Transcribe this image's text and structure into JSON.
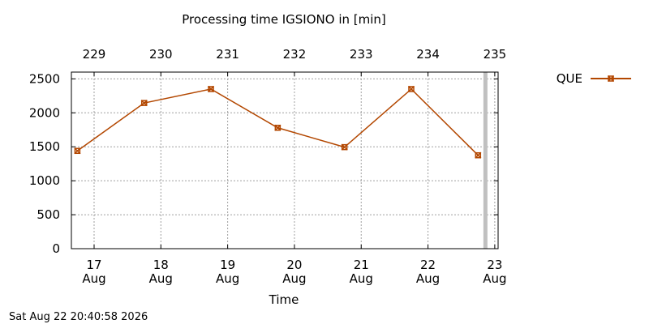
{
  "chart_data": {
    "type": "line",
    "title": "Processing time IGSIONO in [min]",
    "xlabel": "Time",
    "ylabel": "",
    "x_ticks_bottom": [
      {
        "day": "17",
        "month": "Aug"
      },
      {
        "day": "18",
        "month": "Aug"
      },
      {
        "day": "19",
        "month": "Aug"
      },
      {
        "day": "20",
        "month": "Aug"
      },
      {
        "day": "21",
        "month": "Aug"
      },
      {
        "day": "22",
        "month": "Aug"
      },
      {
        "day": "23",
        "month": "Aug"
      }
    ],
    "x_ticks_top": [
      "229",
      "230",
      "231",
      "232",
      "233",
      "234",
      "235"
    ],
    "x_range": [
      16.66,
      23.05
    ],
    "y_ticks": [
      "0",
      "500",
      "1000",
      "1500",
      "2000",
      "2500"
    ],
    "ylim": [
      0,
      2600
    ],
    "grid": true,
    "legend_position": "top-right",
    "series": [
      {
        "name": "QUE",
        "color": "#b34700",
        "marker": "x-square",
        "points": [
          {
            "x": 16.75,
            "y": 1440
          },
          {
            "x": 17.75,
            "y": 2145
          },
          {
            "x": 18.75,
            "y": 2350
          },
          {
            "x": 19.75,
            "y": 1780
          },
          {
            "x": 20.75,
            "y": 1495
          },
          {
            "x": 21.75,
            "y": 2350
          },
          {
            "x": 22.75,
            "y": 1375
          }
        ]
      }
    ],
    "current_time_marker": {
      "x": 22.86,
      "color": "#c0c0c0"
    }
  },
  "timestamp": "Sat Aug 22 20:40:58 2026"
}
